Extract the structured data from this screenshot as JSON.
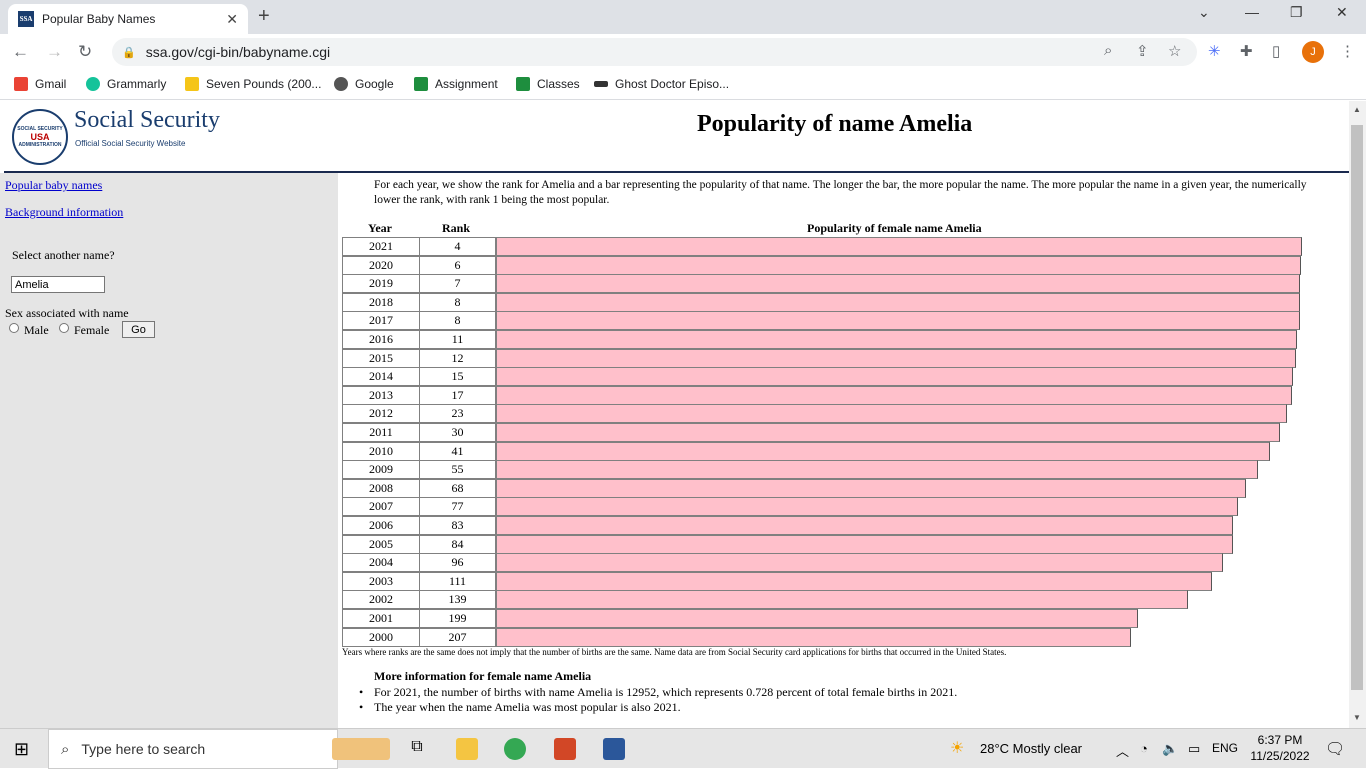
{
  "browser": {
    "tab_title": "Popular Baby Names",
    "tab_favicon": "SSA",
    "url": "ssa.gov/cgi-bin/babyname.cgi",
    "profile_initial": "J",
    "bookmarks": [
      "Gmail",
      "Grammarly",
      "Seven Pounds (200...",
      "Google",
      "Assignment",
      "Classes",
      "Ghost Doctor Episo..."
    ]
  },
  "header": {
    "seal_top": "SOCIAL SECURITY",
    "seal_usa": "USA",
    "seal_bottom": "ADMINISTRATION",
    "brand": "Social Security",
    "brand_sub": "Official Social Security Website",
    "page_title": "Popularity of name Amelia"
  },
  "sidebar": {
    "link_popular": "Popular baby names",
    "link_background": "Background information",
    "select_label": "Select another name?",
    "name_value": "Amelia",
    "sex_label": "Sex associated with name",
    "male_label": "Male",
    "female_label": "Female",
    "go_label": "Go"
  },
  "main": {
    "intro": "For each year, we show the rank for Amelia and a bar representing the popularity of that name. The longer the bar, the more popular the name. The more popular the name in a given year, the numerically lower the rank, with rank 1 being the most popular.",
    "col_year": "Year",
    "col_rank": "Rank",
    "col_bar": "Popularity of female name Amelia",
    "note": "Years where ranks are the same does not imply that the number of births are the same. Name data are from Social Security card applications for births that occurred in the United States.",
    "more_heading": "More information for female name Amelia",
    "more_items": [
      "For 2021, the number of births with name Amelia is 12952, which represents 0.728 percent of total female births in 2021.",
      "The year when the name Amelia was most popular is also 2021."
    ]
  },
  "chart_data": {
    "type": "table",
    "title": "Popularity of female name Amelia",
    "columns": [
      "Year",
      "Rank"
    ],
    "rows": [
      {
        "year": "2021",
        "rank": "4",
        "popularity": 1.0
      },
      {
        "year": "2020",
        "rank": "6",
        "popularity": 0.999
      },
      {
        "year": "2019",
        "rank": "7",
        "popularity": 0.998
      },
      {
        "year": "2018",
        "rank": "8",
        "popularity": 0.997
      },
      {
        "year": "2017",
        "rank": "8",
        "popularity": 0.997
      },
      {
        "year": "2016",
        "rank": "11",
        "popularity": 0.994
      },
      {
        "year": "2015",
        "rank": "12",
        "popularity": 0.993
      },
      {
        "year": "2014",
        "rank": "15",
        "popularity": 0.989
      },
      {
        "year": "2013",
        "rank": "17",
        "popularity": 0.987
      },
      {
        "year": "2012",
        "rank": "23",
        "popularity": 0.981
      },
      {
        "year": "2011",
        "rank": "30",
        "popularity": 0.973
      },
      {
        "year": "2010",
        "rank": "41",
        "popularity": 0.96
      },
      {
        "year": "2009",
        "rank": "55",
        "popularity": 0.945
      },
      {
        "year": "2008",
        "rank": "68",
        "popularity": 0.93
      },
      {
        "year": "2007",
        "rank": "77",
        "popularity": 0.921
      },
      {
        "year": "2006",
        "rank": "83",
        "popularity": 0.915
      },
      {
        "year": "2005",
        "rank": "84",
        "popularity": 0.915
      },
      {
        "year": "2004",
        "rank": "96",
        "popularity": 0.902
      },
      {
        "year": "2003",
        "rank": "111",
        "popularity": 0.888
      },
      {
        "year": "2002",
        "rank": "139",
        "popularity": 0.859
      },
      {
        "year": "2001",
        "rank": "199",
        "popularity": 0.796
      },
      {
        "year": "2000",
        "rank": "207",
        "popularity": 0.788
      }
    ],
    "bar_color": "#ffc0cb"
  },
  "taskbar": {
    "search_placeholder": "Type here to search",
    "weather": "28°C  Mostly clear",
    "lang": "ENG",
    "time": "6:37 PM",
    "date": "11/25/2022"
  }
}
